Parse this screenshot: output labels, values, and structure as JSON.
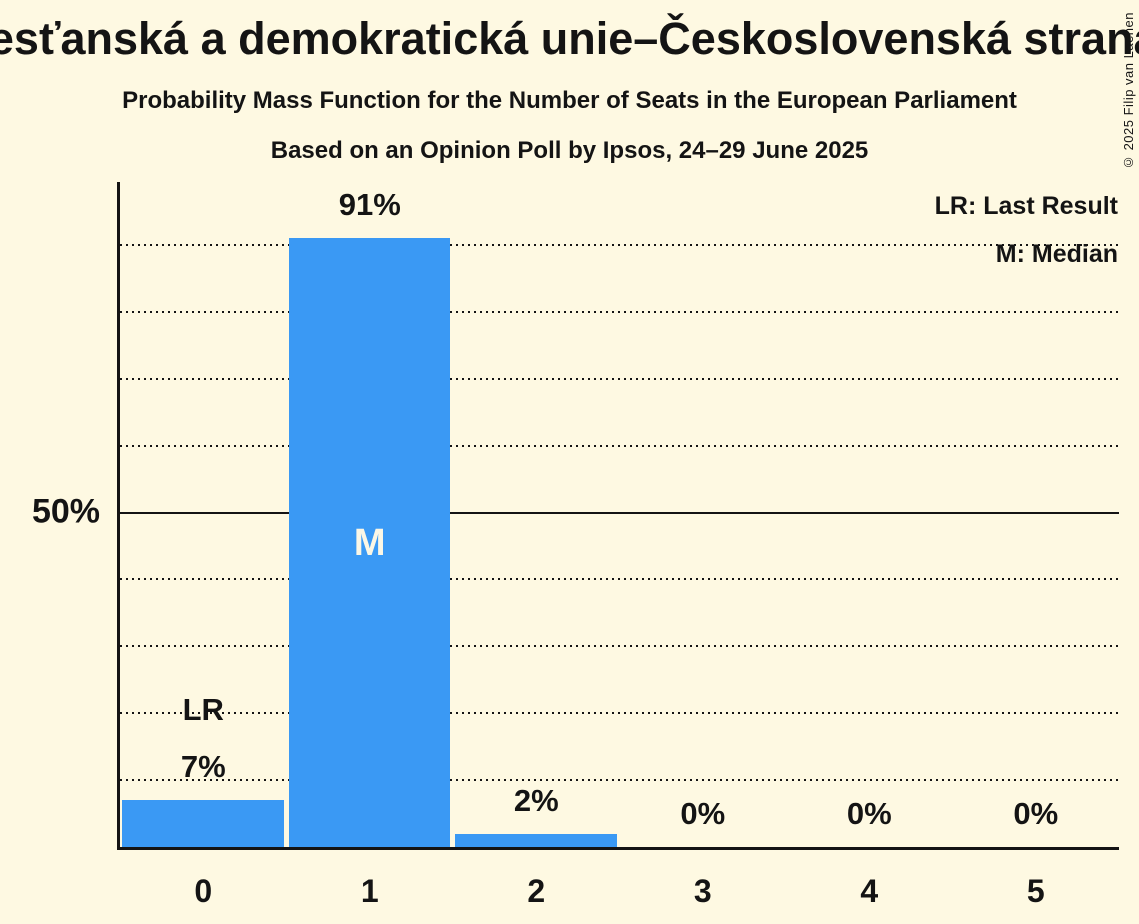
{
  "page": {
    "title": "Křesťanská a demokratická unie–Československá strana lidová",
    "subtitle": "Probability Mass Function for the Number of Seats in the European Parliament",
    "poll_info": "Based on an Opinion Poll by Ipsos, 24–29 June 2025",
    "copyright": "© 2025 Filip van Laenen"
  },
  "legend": {
    "last_result": "LR: Last Result",
    "median": "M: Median"
  },
  "y_axis": {
    "tick_label": "50%"
  },
  "colors": {
    "background": "#FEF9E2",
    "bar": "#3A99F4",
    "text": "#141414",
    "median_label": "#FBF7E6"
  },
  "chart_data": {
    "type": "bar",
    "title": "Probability Mass Function for the Number of Seats in the European Parliament",
    "subtitle": "Based on an Opinion Poll by Ipsos, 24–29 June 2025",
    "xlabel": "",
    "ylabel": "",
    "categories": [
      "0",
      "1",
      "2",
      "3",
      "4",
      "5"
    ],
    "values": [
      7,
      91,
      2,
      0,
      0,
      0
    ],
    "value_labels": [
      "7%",
      "91%",
      "2%",
      "0%",
      "0%",
      "0%"
    ],
    "ylim": [
      0,
      100
    ],
    "y_tick_labeled": {
      "percent": 50,
      "label": "50%"
    },
    "gridlines_percent": [
      10,
      20,
      30,
      40,
      50,
      60,
      70,
      80,
      90
    ],
    "solid_gridline_percent": 50,
    "grid": "dotted horizontal",
    "legend_position": "top-right",
    "annotations": [
      {
        "type": "last_result",
        "category": "0",
        "label": "LR"
      },
      {
        "type": "median",
        "category": "1",
        "label": "M"
      }
    ]
  }
}
